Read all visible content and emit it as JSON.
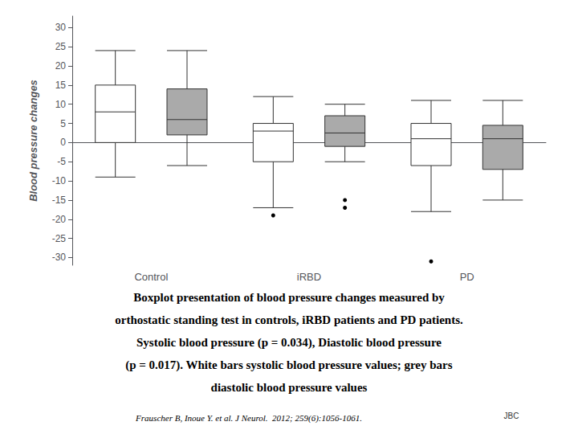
{
  "chart_data": {
    "type": "boxplot",
    "categories": [
      "Control",
      "iRBD",
      "PD"
    ],
    "series": [
      {
        "color": "#ffffff",
        "values": [
          {
            "med": 8,
            "q1": 0,
            "q3": 15,
            "whislo": -9,
            "whishi": 24,
            "fliers": []
          },
          {
            "med": 3,
            "q1": -5,
            "q3": 5,
            "whislo": -17,
            "whishi": 12,
            "fliers": [
              -19
            ]
          },
          {
            "med": 1,
            "q1": -6,
            "q3": 5,
            "whislo": -18,
            "whishi": 11,
            "fliers": [
              -31
            ]
          }
        ]
      },
      {
        "color": "#aaaaaa",
        "values": [
          {
            "med": 6,
            "q1": 2,
            "q3": 14,
            "whislo": -6,
            "whishi": 24,
            "fliers": []
          },
          {
            "med": 2.5,
            "q1": -1,
            "q3": 7,
            "whislo": -5,
            "whishi": 10,
            "fliers": [
              -15,
              -17
            ]
          },
          {
            "med": 1,
            "q1": -7,
            "q3": 4.5,
            "whislo": -15,
            "whishi": 11,
            "fliers": []
          }
        ]
      }
    ],
    "ylabel": "Blood pressure changes",
    "ylim": [
      -32,
      33
    ],
    "yticks": [
      -30,
      -25,
      -20,
      -15,
      -10,
      -5,
      0,
      5,
      10,
      15,
      20,
      25,
      30
    ],
    "grid": false,
    "annotations": [
      "Boxplot presentation of blood pressure changes measured by",
      "orthostatic standing test in controls, iRBD patients and PD patients.",
      "Systolic blood pressure (p = 0.034), Diastolic blood pressure",
      "(p = 0.017). White bars systolic blood pressure values; grey bars",
      "diastolic blood pressure values",
      "Frauscher B, Inoue Y. et al. ​J Neurol.​  2012; 259(6):1056-1061.",
      "JBC"
    ]
  }
}
